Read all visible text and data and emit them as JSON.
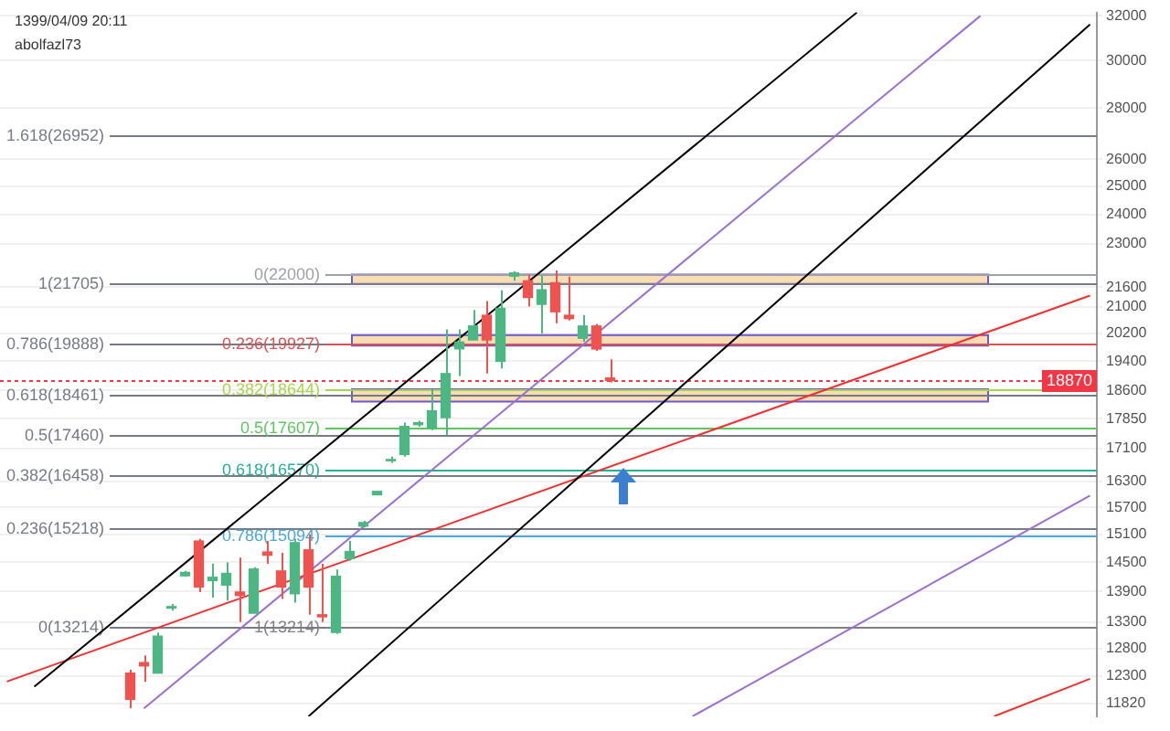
{
  "chart_data": {
    "type": "candlestick",
    "annotations": [
      "1399/04/09 20:11",
      "abolfazl73"
    ],
    "categories": [
      null,
      null,
      null,
      null,
      null,
      null,
      null,
      null,
      null,
      null,
      null,
      null,
      null,
      null,
      null,
      null,
      null,
      null,
      null,
      null,
      null,
      null,
      null,
      null,
      null,
      null,
      null,
      null,
      null,
      null,
      null,
      null,
      null,
      null,
      null,
      null,
      null,
      null,
      null,
      null,
      null,
      null,
      null,
      null,
      null,
      null,
      null,
      null,
      null,
      null,
      null,
      null,
      null,
      null,
      null,
      null,
      null,
      null,
      null,
      null,
      null,
      null,
      null,
      null,
      null,
      null,
      null,
      null,
      null,
      null,
      null,
      null,
      null,
      null,
      null,
      null,
      null,
      null,
      null,
      null
    ],
    "ohlc": [
      null,
      null,
      null,
      null,
      null,
      null,
      null,
      null,
      null,
      [
        12350,
        12410,
        11740,
        11890
      ],
      [
        12540,
        12670,
        12195,
        12480
      ],
      [
        12350,
        13100,
        12350,
        13030
      ],
      [
        13570,
        13650,
        13520,
        13600
      ],
      [
        14220,
        14320,
        14200,
        14290
      ],
      [
        14955,
        15000,
        13890,
        13990
      ],
      [
        14120,
        14470,
        13780,
        14190
      ],
      [
        14030,
        14500,
        13720,
        14270
      ],
      [
        13890,
        14600,
        13300,
        13820
      ],
      [
        13470,
        14400,
        13470,
        14360
      ],
      [
        14720,
        14955,
        14470,
        14650
      ],
      [
        14320,
        14700,
        13750,
        13990
      ],
      [
        13855,
        15000,
        13680,
        14920
      ],
      [
        14765,
        15100,
        13440,
        13990
      ],
      [
        13440,
        14470,
        13300,
        13400
      ],
      [
        13100,
        14350,
        13070,
        14210
      ],
      [
        14580,
        14955,
        14530,
        14730
      ],
      [
        15280,
        15400,
        15250,
        15360
      ],
      [
        15990,
        16070,
        15990,
        16070
      ],
      [
        16800,
        16900,
        16750,
        16830
      ],
      [
        16950,
        17750,
        16900,
        17655
      ],
      [
        17700,
        17800,
        17650,
        17750
      ],
      [
        17610,
        18630,
        17560,
        18060
      ],
      [
        17880,
        20320,
        17430,
        19060
      ],
      [
        19755,
        20320,
        18990,
        19950
      ],
      [
        20010,
        20900,
        20010,
        20420
      ],
      [
        20740,
        21170,
        19060,
        20010
      ],
      [
        19400,
        21500,
        19200,
        20950
      ],
      [
        21950,
        22100,
        21800,
        22050
      ],
      [
        21800,
        22000,
        21000,
        21280
      ],
      [
        21070,
        21980,
        20200,
        21520
      ],
      [
        21740,
        22130,
        20500,
        20845
      ],
      [
        20740,
        21935,
        20580,
        20640
      ],
      [
        20060,
        20740,
        19960,
        20420
      ],
      [
        20420,
        20480,
        19700,
        19750
      ],
      [
        18940,
        19460,
        18820,
        18870
      ],
      null,
      null,
      null,
      null,
      null,
      null,
      null,
      null,
      null,
      null,
      null,
      null,
      null,
      null,
      null,
      null,
      null,
      null,
      null,
      null,
      null,
      null,
      null,
      null,
      null,
      null,
      null,
      null,
      null,
      null,
      null,
      null,
      null,
      null,
      null
    ],
    "colors": [
      null,
      null,
      null,
      null,
      null,
      null,
      null,
      null,
      null,
      "#ef5350",
      "#ef5350",
      "#4cb782",
      "#4cb782",
      "#4cb782",
      "#ef5350",
      "#4cb782",
      "#4cb782",
      "#ef5350",
      "#4cb782",
      "#ef5350",
      "#ef5350",
      "#4cb782",
      "#ef5350",
      "#ef5350",
      "#4cb782",
      "#4cb782",
      "#4cb782",
      "#4cb782",
      "#4cb782",
      "#4cb782",
      "#4cb782",
      "#4cb782",
      "#4cb782",
      "#4cb782",
      "#4cb782",
      "#ef5350",
      "#4cb782",
      "#4cb782",
      "#ef5350",
      "#4cb782",
      "#ef5350",
      "#ef5350",
      "#4cb782",
      "#ef5350",
      "#ef5350",
      null,
      null,
      null,
      null,
      null,
      null,
      null,
      null,
      null,
      null,
      null,
      null,
      null,
      null,
      null,
      null,
      null,
      null,
      null,
      null,
      null,
      null,
      null,
      null,
      null,
      null,
      null,
      null,
      null,
      null,
      null,
      null,
      null,
      null,
      null
    ],
    "series": [
      {
        "type": "line",
        "color": "#000000",
        "values": [
          null,
          null,
          12110,
          null,
          null,
          null,
          null,
          null,
          null,
          null,
          null,
          null,
          null,
          null,
          null,
          null,
          null,
          null,
          null,
          null,
          null,
          null,
          null,
          null,
          null,
          null,
          null,
          null,
          null,
          null,
          null,
          null,
          null,
          null,
          null,
          null,
          null,
          null,
          null,
          null,
          null,
          null,
          null,
          null,
          null,
          null,
          null,
          null,
          null,
          null,
          null,
          null,
          null,
          null,
          null,
          null,
          null,
          null,
          null,
          null,
          null,
          null,
          32160,
          null,
          null,
          null,
          null,
          null,
          null,
          null,
          null,
          null,
          null,
          null,
          null,
          null,
          null,
          null,
          null,
          null
        ]
      },
      {
        "type": "line",
        "color": "#000000",
        "values": [
          null,
          null,
          null,
          null,
          null,
          null,
          null,
          null,
          null,
          null,
          null,
          null,
          null,
          null,
          null,
          null,
          null,
          null,
          null,
          null,
          null,
          null,
          11600,
          null,
          null,
          null,
          null,
          null,
          null,
          null,
          null,
          null,
          null,
          null,
          null,
          null,
          null,
          null,
          null,
          null,
          null,
          null,
          null,
          null,
          null,
          null,
          null,
          null,
          null,
          null,
          null,
          null,
          null,
          null,
          null,
          null,
          null,
          null,
          null,
          null,
          null,
          null,
          null,
          null,
          null,
          null,
          null,
          null,
          null,
          null,
          null,
          null,
          null,
          null,
          null,
          null,
          null,
          null,
          null,
          31600
        ]
      },
      {
        "type": "line",
        "color": "#f23030",
        "values": [
          12200,
          null,
          null,
          null,
          null,
          null,
          null,
          null,
          null,
          null,
          null,
          null,
          null,
          null,
          null,
          null,
          null,
          null,
          null,
          null,
          null,
          null,
          null,
          null,
          null,
          null,
          null,
          null,
          null,
          null,
          null,
          null,
          null,
          null,
          null,
          null,
          null,
          null,
          null,
          null,
          null,
          null,
          null,
          null,
          null,
          null,
          null,
          null,
          null,
          null,
          null,
          null,
          null,
          null,
          null,
          null,
          null,
          null,
          null,
          null,
          null,
          null,
          null,
          null,
          null,
          null,
          null,
          null,
          null,
          null,
          null,
          null,
          null,
          null,
          null,
          null,
          null,
          null,
          null,
          21340
        ]
      },
      {
        "type": "line",
        "color": "#f23030",
        "values": [
          null,
          null,
          null,
          null,
          null,
          null,
          null,
          null,
          null,
          null,
          null,
          null,
          null,
          null,
          null,
          null,
          null,
          null,
          null,
          null,
          null,
          null,
          null,
          null,
          null,
          null,
          null,
          null,
          null,
          null,
          null,
          null,
          null,
          null,
          null,
          null,
          null,
          null,
          null,
          null,
          null,
          null,
          null,
          null,
          null,
          null,
          null,
          null,
          null,
          null,
          null,
          null,
          null,
          null,
          null,
          null,
          null,
          null,
          null,
          null,
          null,
          null,
          null,
          null,
          null,
          null,
          null,
          null,
          null,
          null,
          null,
          null,
          11600,
          null,
          null,
          null,
          null,
          null,
          null,
          12250
        ]
      },
      {
        "type": "line",
        "color": "#9c6fd0",
        "values": [
          null,
          null,
          null,
          null,
          null,
          null,
          null,
          null,
          null,
          null,
          11735,
          null,
          null,
          null,
          null,
          null,
          null,
          null,
          null,
          null,
          null,
          null,
          null,
          null,
          null,
          null,
          null,
          null,
          null,
          null,
          null,
          null,
          null,
          null,
          null,
          null,
          null,
          null,
          null,
          null,
          null,
          null,
          null,
          null,
          null,
          null,
          null,
          null,
          null,
          null,
          null,
          null,
          null,
          null,
          null,
          null,
          null,
          null,
          null,
          null,
          null,
          null,
          null,
          null,
          null,
          null,
          null,
          null,
          null,
          null,
          null,
          32000,
          null,
          null,
          null,
          null,
          null,
          null,
          null,
          null
        ]
      },
      {
        "type": "line",
        "color": "#9c6fd0",
        "values": [
          null,
          null,
          null,
          null,
          null,
          null,
          null,
          null,
          null,
          null,
          null,
          null,
          null,
          null,
          null,
          null,
          null,
          null,
          null,
          null,
          null,
          null,
          null,
          null,
          null,
          null,
          null,
          null,
          null,
          null,
          null,
          null,
          null,
          null,
          null,
          null,
          null,
          null,
          null,
          null,
          null,
          null,
          null,
          null,
          null,
          null,
          null,
          null,
          null,
          null,
          11600,
          null,
          null,
          null,
          null,
          null,
          null,
          null,
          null,
          null,
          null,
          null,
          null,
          null,
          null,
          null,
          null,
          null,
          null,
          null,
          null,
          null,
          null,
          null,
          null,
          null,
          null,
          null,
          null,
          15970
        ]
      }
    ],
    "bands": [
      {
        "axis": "y",
        "from": 21705,
        "to": 22000,
        "color": "#f8dcb4"
      },
      {
        "axis": "y",
        "from": 19850,
        "to": 20150,
        "color": "#f8dcb4"
      },
      {
        "axis": "y",
        "from": 18300,
        "to": 18630,
        "color": "#f8dcb4"
      }
    ],
    "ref_lines": [
      {
        "axis": "y",
        "value": 26952,
        "label": "1.618(26952)",
        "color": "#787b86"
      },
      {
        "axis": "y",
        "value": 21705,
        "label": "1(21705)",
        "color": "#787b86"
      },
      {
        "axis": "y",
        "value": 19888,
        "label": "0.786(19888)",
        "color": "#787b86"
      },
      {
        "axis": "y",
        "value": 18461,
        "label": "0.618(18461)",
        "color": "#787b86"
      },
      {
        "axis": "y",
        "value": 17460,
        "label": "0.5(17460)",
        "color": "#787b86"
      },
      {
        "axis": "y",
        "value": 16458,
        "label": "0.382(16458)",
        "color": "#787b86"
      },
      {
        "axis": "y",
        "value": 15218,
        "label": "0.236(15218)",
        "color": "#787b86"
      },
      {
        "axis": "y",
        "value": 13214,
        "label": "0(13214)",
        "color": "#787b86"
      },
      {
        "axis": "y",
        "value": 22000,
        "label": "0(22000)",
        "color": "#a0a0a8"
      },
      {
        "axis": "y",
        "value": 19927,
        "label": "0.236(19927)",
        "color": "#e05050"
      },
      {
        "axis": "y",
        "value": 18644,
        "label": "0.382(18644)",
        "color": "#a8d64a"
      },
      {
        "axis": "y",
        "value": 17607,
        "label": "0.5(17607)",
        "color": "#5cc85c"
      },
      {
        "axis": "y",
        "value": 16570,
        "label": "0.618(16570)",
        "color": "#26b09a"
      },
      {
        "axis": "y",
        "value": 15094,
        "label": "0.786(15094)",
        "color": "#4aa8e0"
      },
      {
        "axis": "y",
        "value": 13214,
        "label": "1(13214)",
        "color": "#808080"
      },
      {
        "axis": "y",
        "value": 18870,
        "label": "18870",
        "color": "#f23645",
        "line_style": "dotted"
      }
    ],
    "ylim": [
      11600,
      32160
    ],
    "yticks": [
      11820,
      12300,
      12800,
      13300,
      13900,
      14500,
      15100,
      15700,
      16300,
      17100,
      17850,
      18600,
      19400,
      20200,
      21000,
      21600,
      23000,
      24000,
      25000,
      26000,
      28000,
      30000,
      32000
    ],
    "log": "y",
    "grid": "y",
    "legend": false,
    "tick_labels": "y"
  }
}
